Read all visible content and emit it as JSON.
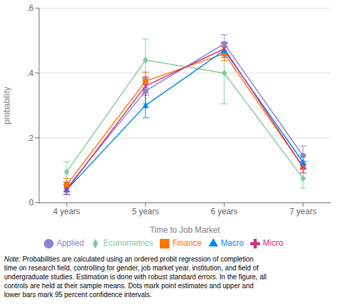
{
  "chart_data": {
    "type": "line",
    "x": [
      4,
      5,
      6,
      7
    ],
    "xlabel": "Time to Job Market",
    "ylabel": "probability",
    "xlim": [
      3.65,
      7.35
    ],
    "xticks": [
      {
        "value": 4,
        "label": "4 years"
      },
      {
        "value": 5,
        "label": "5 years"
      },
      {
        "value": 6,
        "label": "6 years"
      },
      {
        "value": 7,
        "label": "7 years"
      }
    ],
    "ylim": [
      0.0,
      0.6
    ],
    "yticks": [
      0,
      {
        "value": 0.2,
        "label": ".2"
      },
      {
        "value": 0.4,
        "label": ".4"
      },
      {
        "value": 0.6,
        "label": ".6"
      }
    ],
    "grid": true,
    "legend": "bottom",
    "series": [
      {
        "name": "Applied",
        "marker": "circle",
        "values": [
          0.045,
          0.345,
          0.49,
          0.145
        ],
        "error_lo": [
          0.02,
          0.04,
          0.028,
          0.026
        ],
        "error_hi": [
          0.02,
          0.04,
          0.028,
          0.03
        ]
      },
      {
        "name": "Econometrics",
        "marker": "diamond",
        "values": [
          0.095,
          0.44,
          0.4,
          0.075
        ],
        "error_lo": [
          0.032,
          0.062,
          0.095,
          0.03
        ],
        "error_hi": [
          0.032,
          0.065,
          0.095,
          0.032
        ]
      },
      {
        "name": "Finance",
        "marker": "square",
        "values": [
          0.055,
          0.375,
          0.46,
          0.11
        ],
        "error_lo": [
          0.02,
          0.028,
          0.022,
          0.018
        ],
        "error_hi": [
          0.02,
          0.028,
          0.022,
          0.018
        ]
      },
      {
        "name": "Macro",
        "marker": "triangle",
        "values": [
          0.04,
          0.3,
          0.47,
          0.125
        ],
        "error_lo": [
          0.015,
          0.038,
          0.022,
          0.022
        ],
        "error_hi": [
          0.015,
          0.038,
          0.022,
          0.022
        ]
      },
      {
        "name": "Micro",
        "marker": "x",
        "values": [
          0.04,
          0.36,
          0.475,
          0.11
        ],
        "error_lo": [
          0.015,
          0.028,
          0.02,
          0.018
        ],
        "error_hi": [
          0.015,
          0.028,
          0.02,
          0.018
        ]
      }
    ],
    "annotations": [
      "Note:",
      " Probabilities are calculated using an ordered probit regression of completion\ntime on research field, controlling for gender, job market year, institution, and field of\nundergraduate studies. Estimation is done with robust standard errors. In the figure, all\ncontrols are held at their sample means. Dots mark point estimates and upper and\nlower bars mark 95 percent confidence intervals."
    ]
  }
}
